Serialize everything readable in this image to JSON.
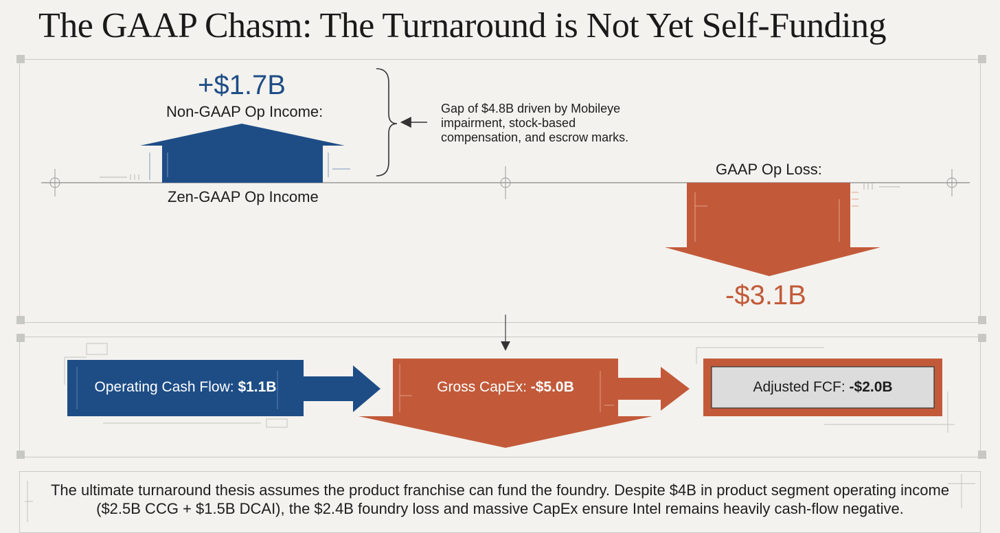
{
  "title": "The GAAP Chasm: The Turnaround is Not Yet Self-Funding",
  "top_panel": {
    "non_gaap": {
      "value": "+$1.7B",
      "label": "Non-GAAP Op Income:",
      "below_label": "Zen-GAAP Op Income",
      "color": "#1e4d86"
    },
    "gaap": {
      "label": "GAAP Op Loss:",
      "value": "-$3.1B",
      "color": "#c25a3a"
    },
    "gap_note": "Gap of $4.8B driven by Mobileye impairment, stock-based compensation, and escrow marks."
  },
  "flow_panel": {
    "ocf": {
      "label": "Operating Cash Flow: ",
      "value": "$1.1B",
      "color": "#1e4d86"
    },
    "capex": {
      "label": "Gross CapEx: ",
      "value": "-$5.0B",
      "color": "#c25a3a"
    },
    "fcf": {
      "label": "Adjusted FCF: ",
      "value": "-$2.0B",
      "fill": "#dcdcdc",
      "border": "#c25a3a"
    }
  },
  "footer": {
    "text": "The ultimate turnaround thesis assumes the product franchise can fund the foundry. Despite $4B in product segment operating income ($2.5B CCG + $1.5B DCAI), the $2.4B foundry loss and massive CapEx ensure Intel remains heavily cash-flow negative."
  }
}
